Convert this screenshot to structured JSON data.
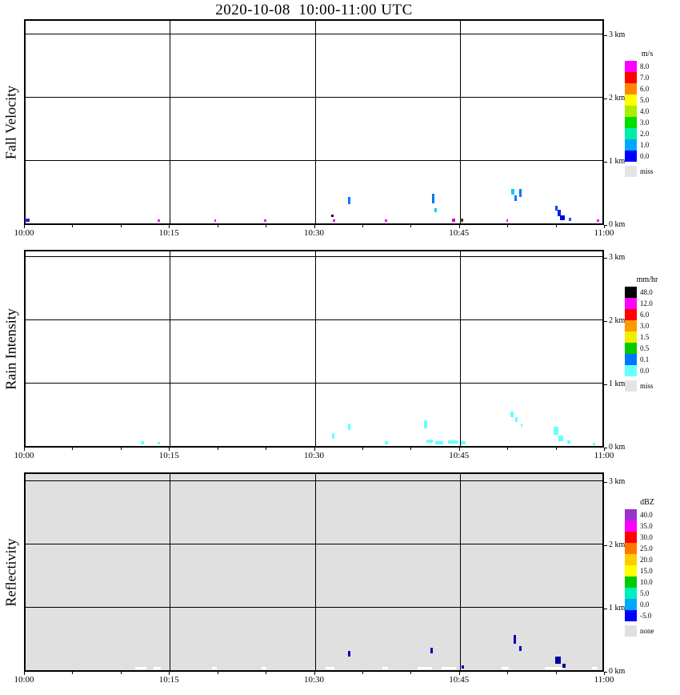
{
  "title": "2020-10-08  10:00-11:00 UTC",
  "time_axis": {
    "tick_labels": [
      "10:00",
      "10:15",
      "10:30",
      "10:45",
      "11:00"
    ],
    "tick_minutes": [
      0,
      15,
      30,
      45,
      60
    ],
    "minor_tick_step_min": 5
  },
  "height_axis": {
    "tick_labels": [
      "0 km",
      "1 km",
      "2 km",
      "3 km"
    ],
    "tick_km": [
      0,
      1,
      2,
      3
    ]
  },
  "chart_data": [
    {
      "type": "heatmap",
      "panel_label": "Fall Velocity",
      "unit": "m/s",
      "x_range_utc": [
        "10:00",
        "11:00"
      ],
      "y_range_km": [
        0,
        3.25
      ],
      "background": "#ffffff",
      "grid": true,
      "legend": {
        "title": "m/s",
        "position": "right",
        "bins": [
          {
            "label": "8.0",
            "color": "#ff00ff"
          },
          {
            "label": "7.0",
            "color": "#ff0000"
          },
          {
            "label": "6.0",
            "color": "#ff8800"
          },
          {
            "label": "5.0",
            "color": "#ffff00"
          },
          {
            "label": "4.0",
            "color": "#aaee00"
          },
          {
            "label": "3.0",
            "color": "#00dd00"
          },
          {
            "label": "2.0",
            "color": "#00eeaa"
          },
          {
            "label": "1.0",
            "color": "#00aaff"
          },
          {
            "label": "0.0",
            "color": "#0000ff"
          }
        ],
        "missing": {
          "label": "miss",
          "color": "#e4e4e4"
        }
      },
      "points": [
        {
          "t": 0.2,
          "h": 0.03,
          "v": 0.5,
          "c": "#2222cc",
          "dt": 0.5,
          "dh": 0.05
        },
        {
          "t": 13.8,
          "h": 0.02,
          "v": 8.0,
          "c": "#ff00ff",
          "dt": 0.25,
          "dh": 0.04
        },
        {
          "t": 19.6,
          "h": 0.02,
          "v": 8.0,
          "c": "#ff00ff",
          "dt": 0.2,
          "dh": 0.04
        },
        {
          "t": 24.8,
          "h": 0.02,
          "v": 8.0,
          "c": "#ff00ff",
          "dt": 0.25,
          "dh": 0.04
        },
        {
          "t": 31.7,
          "h": 0.1,
          "v": null,
          "c": "#111111",
          "dt": 0.25,
          "dh": 0.04
        },
        {
          "t": 31.9,
          "h": 0.03,
          "v": 8.0,
          "c": "#ff00ff",
          "dt": 0.2,
          "dh": 0.03
        },
        {
          "t": 33.5,
          "h": 0.3,
          "v": 1.5,
          "c": "#0077ff",
          "dt": 0.25,
          "dh": 0.12
        },
        {
          "t": 37.3,
          "h": 0.02,
          "v": 8.0,
          "c": "#ff00ff",
          "dt": 0.25,
          "dh": 0.04
        },
        {
          "t": 42.2,
          "h": 0.32,
          "v": 1.5,
          "c": "#0077ff",
          "dt": 0.25,
          "dh": 0.15
        },
        {
          "t": 42.4,
          "h": 0.18,
          "v": 2.0,
          "c": "#00ccff",
          "dt": 0.2,
          "dh": 0.06
        },
        {
          "t": 44.3,
          "h": 0.03,
          "v": 8.0,
          "c": "#cc00cc",
          "dt": 0.3,
          "dh": 0.04
        },
        {
          "t": 45.1,
          "h": 0.03,
          "v": null,
          "c": "#333333",
          "dt": 0.3,
          "dh": 0.04
        },
        {
          "t": 49.8,
          "h": 0.02,
          "v": 8.0,
          "c": "#ff00ff",
          "dt": 0.2,
          "dh": 0.04
        },
        {
          "t": 50.4,
          "h": 0.45,
          "v": 2.0,
          "c": "#00ccff",
          "dt": 0.25,
          "dh": 0.1
        },
        {
          "t": 50.7,
          "h": 0.36,
          "v": 1.5,
          "c": "#0077ff",
          "dt": 0.2,
          "dh": 0.08
        },
        {
          "t": 51.2,
          "h": 0.42,
          "v": 1.5,
          "c": "#0077ff",
          "dt": 0.25,
          "dh": 0.12
        },
        {
          "t": 54.9,
          "h": 0.2,
          "v": 0.8,
          "c": "#0044ff",
          "dt": 0.3,
          "dh": 0.08
        },
        {
          "t": 55.2,
          "h": 0.12,
          "v": 0.5,
          "c": "#0022ee",
          "dt": 0.4,
          "dh": 0.1
        },
        {
          "t": 55.5,
          "h": 0.05,
          "v": 0.5,
          "c": "#0000dd",
          "dt": 0.5,
          "dh": 0.08
        },
        {
          "t": 56.3,
          "h": 0.04,
          "v": 0.8,
          "c": "#2255ff",
          "dt": 0.25,
          "dh": 0.05
        },
        {
          "t": 59.2,
          "h": 0.02,
          "v": 8.0,
          "c": "#ff00ff",
          "dt": 0.25,
          "dh": 0.04
        }
      ]
    },
    {
      "type": "heatmap",
      "panel_label": "Rain Intensity",
      "unit": "mm/hr",
      "x_range_utc": [
        "10:00",
        "11:00"
      ],
      "y_range_km": [
        0,
        3.25
      ],
      "background": "#ffffff",
      "grid": true,
      "legend": {
        "title": "mm/hr",
        "position": "right",
        "bins": [
          {
            "label": "48.0",
            "color": "#000000"
          },
          {
            "label": "12.0",
            "color": "#ff00ff"
          },
          {
            "label": "6.0",
            "color": "#ff0000"
          },
          {
            "label": "3.0",
            "color": "#ff9900"
          },
          {
            "label": "1.5",
            "color": "#eeee00"
          },
          {
            "label": "0.5",
            "color": "#00cc00"
          },
          {
            "label": "0.1",
            "color": "#0077ff"
          },
          {
            "label": "0.0",
            "color": "#66ffff"
          }
        ],
        "missing": {
          "label": "miss",
          "color": "#e4e4e4"
        }
      },
      "points": [
        {
          "t": 12.1,
          "h": 0.03,
          "v": 0.05,
          "c": "#66ffff",
          "dt": 0.3,
          "dh": 0.05
        },
        {
          "t": 13.8,
          "h": 0.02,
          "v": 0.05,
          "c": "#66ffff",
          "dt": 0.25,
          "dh": 0.04
        },
        {
          "t": 31.8,
          "h": 0.12,
          "v": 0.05,
          "c": "#66ffff",
          "dt": 0.25,
          "dh": 0.08
        },
        {
          "t": 33.5,
          "h": 0.25,
          "v": 0.05,
          "c": "#66ffff",
          "dt": 0.25,
          "dh": 0.1
        },
        {
          "t": 37.3,
          "h": 0.03,
          "v": 0.05,
          "c": "#66ffff",
          "dt": 0.3,
          "dh": 0.04
        },
        {
          "t": 41.4,
          "h": 0.28,
          "v": 0.05,
          "c": "#66ffff",
          "dt": 0.3,
          "dh": 0.12
        },
        {
          "t": 41.8,
          "h": 0.05,
          "v": 0.05,
          "c": "#66ffff",
          "dt": 0.6,
          "dh": 0.05
        },
        {
          "t": 42.8,
          "h": 0.03,
          "v": 0.05,
          "c": "#66ffff",
          "dt": 0.8,
          "dh": 0.04
        },
        {
          "t": 44.2,
          "h": 0.04,
          "v": 0.05,
          "c": "#66ffff",
          "dt": 1.0,
          "dh": 0.05
        },
        {
          "t": 45.3,
          "h": 0.03,
          "v": 0.05,
          "c": "#66ffff",
          "dt": 0.5,
          "dh": 0.04
        },
        {
          "t": 50.3,
          "h": 0.45,
          "v": 0.05,
          "c": "#66ffff",
          "dt": 0.3,
          "dh": 0.1
        },
        {
          "t": 50.8,
          "h": 0.38,
          "v": 0.05,
          "c": "#66ffff",
          "dt": 0.25,
          "dh": 0.08
        },
        {
          "t": 51.3,
          "h": 0.3,
          "v": 0.05,
          "c": "#66ffff",
          "dt": 0.2,
          "dh": 0.06
        },
        {
          "t": 54.9,
          "h": 0.18,
          "v": 0.05,
          "c": "#66ffff",
          "dt": 0.5,
          "dh": 0.12
        },
        {
          "t": 55.4,
          "h": 0.08,
          "v": 0.05,
          "c": "#66ffff",
          "dt": 0.5,
          "dh": 0.08
        },
        {
          "t": 56.2,
          "h": 0.04,
          "v": 0.05,
          "c": "#66ffff",
          "dt": 0.3,
          "dh": 0.05
        },
        {
          "t": 58.8,
          "h": 0.02,
          "v": 0.05,
          "c": "#66ffff",
          "dt": 0.3,
          "dh": 0.03
        }
      ]
    },
    {
      "type": "heatmap",
      "panel_label": "Reflectivity",
      "unit": "dBZ",
      "x_range_utc": [
        "10:00",
        "11:00"
      ],
      "y_range_km": [
        0,
        3.25
      ],
      "background": "#e0e0e0",
      "grid": true,
      "legend": {
        "title": "dBZ",
        "position": "right",
        "bins": [
          {
            "label": "40.0",
            "color": "#9933cc"
          },
          {
            "label": "35.0",
            "color": "#ff00ff"
          },
          {
            "label": "30.0",
            "color": "#ff0000"
          },
          {
            "label": "25.0",
            "color": "#ff7700"
          },
          {
            "label": "20.0",
            "color": "#ffcc00"
          },
          {
            "label": "15.0",
            "color": "#ffff00"
          },
          {
            "label": "10.0",
            "color": "#00cc00"
          },
          {
            "label": "5.0",
            "color": "#00eebb"
          },
          {
            "label": "0.0",
            "color": "#00aaff"
          },
          {
            "label": "-5.0",
            "color": "#0000ff"
          }
        ],
        "missing": {
          "label": "none",
          "color": "#e0e0e0"
        }
      },
      "points": [
        {
          "t": 11.9,
          "h": 0.015,
          "v": null,
          "c": "#ffffff",
          "dt": 1.2,
          "dh": 0.04
        },
        {
          "t": 13.6,
          "h": 0.015,
          "v": null,
          "c": "#ffffff",
          "dt": 0.8,
          "dh": 0.04
        },
        {
          "t": 19.5,
          "h": 0.015,
          "v": null,
          "c": "#ffffff",
          "dt": 0.5,
          "dh": 0.04
        },
        {
          "t": 24.7,
          "h": 0.015,
          "v": null,
          "c": "#ffffff",
          "dt": 0.5,
          "dh": 0.04
        },
        {
          "t": 31.5,
          "h": 0.015,
          "v": null,
          "c": "#ffffff",
          "dt": 0.9,
          "dh": 0.04
        },
        {
          "t": 37.2,
          "h": 0.015,
          "v": null,
          "c": "#ffffff",
          "dt": 0.5,
          "dh": 0.04
        },
        {
          "t": 41.3,
          "h": 0.015,
          "v": null,
          "c": "#ffffff",
          "dt": 1.5,
          "dh": 0.04
        },
        {
          "t": 43.8,
          "h": 0.015,
          "v": null,
          "c": "#ffffff",
          "dt": 1.5,
          "dh": 0.04
        },
        {
          "t": 49.6,
          "h": 0.015,
          "v": null,
          "c": "#ffffff",
          "dt": 0.8,
          "dh": 0.04
        },
        {
          "t": 54.6,
          "h": 0.015,
          "v": null,
          "c": "#ffffff",
          "dt": 1.8,
          "dh": 0.04
        },
        {
          "t": 58.9,
          "h": 0.015,
          "v": null,
          "c": "#ffffff",
          "dt": 0.6,
          "dh": 0.04
        },
        {
          "t": 33.5,
          "h": 0.22,
          "v": -2.0,
          "c": "#0000bb",
          "dt": 0.25,
          "dh": 0.08
        },
        {
          "t": 42.0,
          "h": 0.26,
          "v": -2.0,
          "c": "#0000bb",
          "dt": 0.25,
          "dh": 0.1
        },
        {
          "t": 45.2,
          "h": 0.03,
          "v": -2.0,
          "c": "#0000bb",
          "dt": 0.25,
          "dh": 0.04
        },
        {
          "t": 50.6,
          "h": 0.42,
          "v": -2.0,
          "c": "#0000bb",
          "dt": 0.3,
          "dh": 0.14
        },
        {
          "t": 51.2,
          "h": 0.3,
          "v": -2.0,
          "c": "#0000bb",
          "dt": 0.25,
          "dh": 0.08
        },
        {
          "t": 55.1,
          "h": 0.1,
          "v": -3.0,
          "c": "#000099",
          "dt": 0.6,
          "dh": 0.12
        },
        {
          "t": 55.7,
          "h": 0.04,
          "v": -3.0,
          "c": "#000099",
          "dt": 0.4,
          "dh": 0.06
        }
      ]
    }
  ],
  "colors": {
    "grid": "#000000",
    "frame": "#000000",
    "reflectivity_background": "#e0e0e0"
  }
}
